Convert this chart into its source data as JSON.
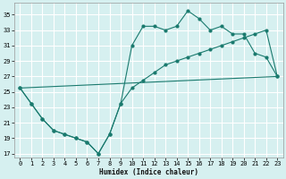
{
  "xlabel": "Humidex (Indice chaleur)",
  "bg_color": "#d6f0f0",
  "grid_color": "#ffffff",
  "line_color": "#1a7a6e",
  "xlim": [
    -0.5,
    23.5
  ],
  "ylim": [
    16.5,
    36.5
  ],
  "yticks": [
    17,
    19,
    21,
    23,
    25,
    27,
    29,
    31,
    33,
    35
  ],
  "xticks": [
    0,
    1,
    2,
    3,
    4,
    5,
    6,
    7,
    8,
    9,
    10,
    11,
    12,
    13,
    14,
    15,
    16,
    17,
    18,
    19,
    20,
    21,
    22,
    23
  ],
  "line1_x": [
    0,
    1,
    2,
    3,
    4,
    5,
    6,
    7,
    8,
    9,
    10,
    11,
    12,
    13,
    14,
    15,
    16,
    17,
    18,
    19,
    20,
    21,
    22,
    23
  ],
  "line1_y": [
    25.5,
    23.5,
    21.5,
    20.0,
    19.5,
    19.0,
    18.5,
    17.0,
    19.5,
    23.5,
    31.0,
    33.5,
    33.5,
    33.0,
    33.5,
    35.5,
    34.5,
    33.0,
    33.5,
    32.5,
    32.5,
    30.0,
    29.5,
    27.0
  ],
  "line2_x": [
    0,
    1,
    2,
    3,
    4,
    5,
    6,
    7,
    8,
    9,
    10,
    11,
    12,
    13,
    14,
    15,
    16,
    17,
    18,
    19,
    20,
    21,
    22,
    23
  ],
  "line2_y": [
    25.5,
    23.5,
    21.5,
    20.0,
    19.5,
    19.0,
    18.5,
    17.0,
    19.5,
    23.5,
    25.5,
    26.5,
    27.5,
    28.5,
    29.0,
    29.5,
    30.0,
    30.5,
    31.0,
    31.5,
    32.0,
    32.5,
    33.0,
    27.0
  ],
  "line3_x": [
    0,
    23
  ],
  "line3_y": [
    25.5,
    27.0
  ]
}
